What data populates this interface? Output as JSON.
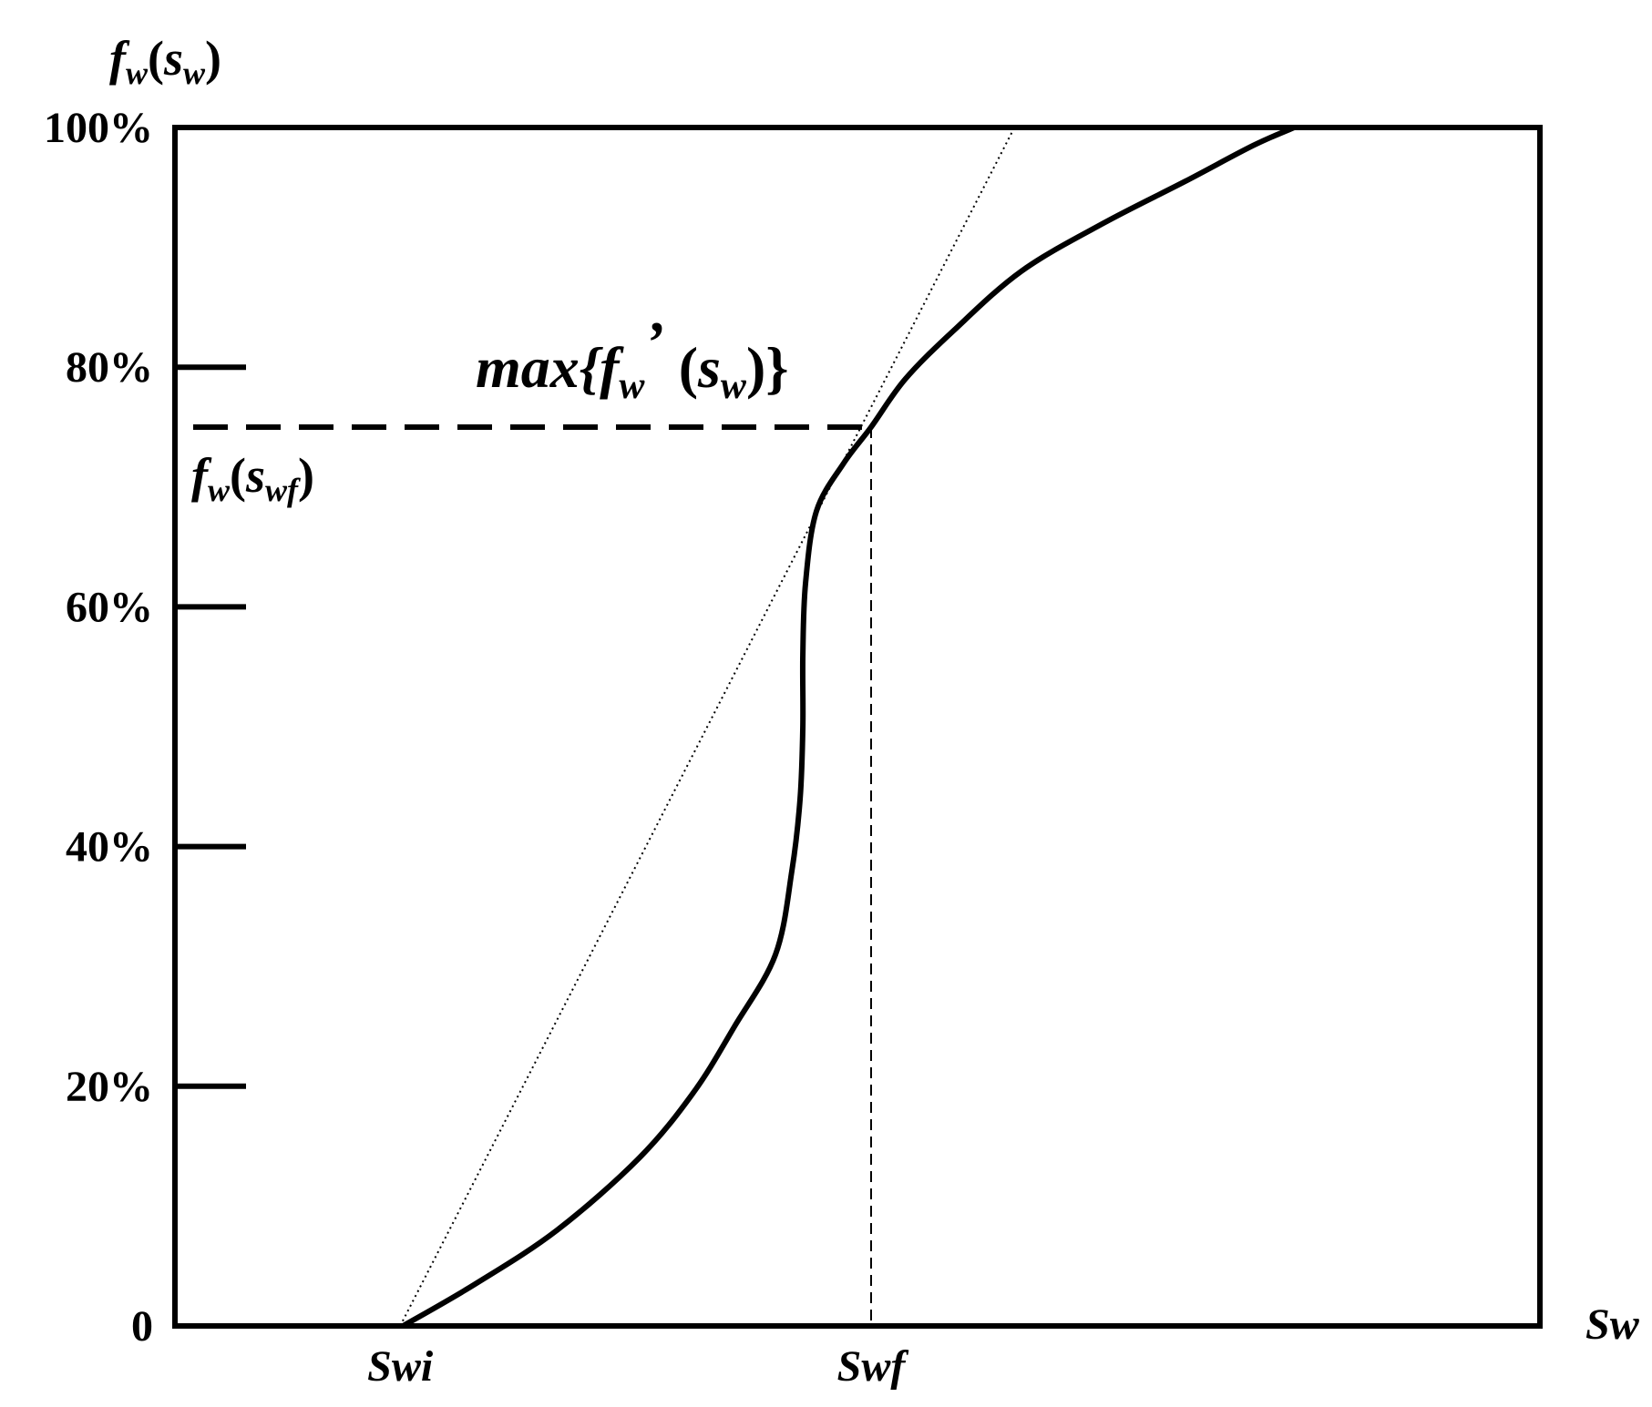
{
  "chart_data": {
    "type": "line",
    "ylabel": {
      "f": "f",
      "sub": "w",
      "open": "(",
      "s": "s",
      "s_sub": "w",
      "close": ")"
    },
    "xlabel": "Sw",
    "y_ticks": [
      {
        "label": "100%",
        "value": 100
      },
      {
        "label": "80%",
        "value": 80
      },
      {
        "label": "60%",
        "value": 60
      },
      {
        "label": "40%",
        "value": 40
      },
      {
        "label": "20%",
        "value": 20
      },
      {
        "label": "0",
        "value": 0
      }
    ],
    "ylim": [
      0,
      100
    ],
    "xlim": [
      0,
      1
    ],
    "x_markers": [
      {
        "label": "Swi",
        "value": 0.165
      },
      {
        "label": "Swf",
        "value": 0.51
      }
    ],
    "series": [
      {
        "x": [
          0.167,
          0.22,
          0.28,
          0.34,
          0.38,
          0.41,
          0.44,
          0.452,
          0.458,
          0.46,
          0.46,
          0.462,
          0.47,
          0.49,
          0.51,
          0.535,
          0.57,
          0.62,
          0.68,
          0.74,
          0.79,
          0.82
        ],
        "y": [
          0,
          3.5,
          8,
          14,
          19.5,
          25,
          31,
          38,
          44,
          50,
          56,
          62,
          68,
          72,
          75,
          79,
          83,
          88,
          92,
          95.5,
          98.5,
          100
        ]
      }
    ],
    "tangent": {
      "x": [
        0.165,
        0.615
      ],
      "y": [
        0,
        100
      ]
    },
    "front_point": {
      "x": 0.51,
      "y": 75
    },
    "annotations": {
      "max": {
        "prefix": "max{",
        "f": "f",
        "sub": "w",
        "prime": "’",
        "open": " (",
        "s": "s",
        "s_sub": "w",
        "close": ")}"
      },
      "front": {
        "f": "f",
        "sub": "w",
        "open": "(",
        "s": "s",
        "s_sub": "wf",
        "close": ")"
      }
    }
  }
}
